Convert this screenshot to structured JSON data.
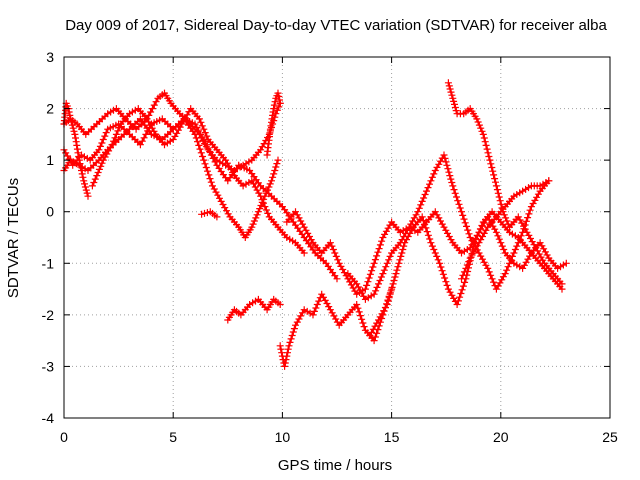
{
  "chart_data": {
    "type": "scatter",
    "title": "Day 009 of 2017, Sidereal Day-to-day VTEC variation (SDTVAR) for receiver alba",
    "xlabel": "GPS time / hours",
    "ylabel": "SDTVAR / TECUs",
    "xlim": [
      0,
      25
    ],
    "ylim": [
      -4,
      3
    ],
    "xticks": [
      0,
      5,
      10,
      15,
      20,
      25
    ],
    "yticks": [
      -4,
      -3,
      -2,
      -1,
      0,
      1,
      2,
      3
    ],
    "grid": true,
    "marker": "+",
    "color": "#ff0000",
    "series": [
      {
        "x": [
          0.0,
          0.1,
          0.2,
          0.3,
          0.5,
          0.7,
          0.9,
          1.1
        ],
        "y": [
          1.7,
          2.1,
          2.0,
          1.8,
          1.5,
          1.0,
          0.6,
          0.3
        ]
      },
      {
        "x": [
          0.0,
          0.3,
          0.6,
          1.0,
          1.5,
          2.0,
          2.4,
          2.8,
          3.3,
          3.8,
          4.3,
          4.6,
          4.9,
          5.3,
          5.8,
          6.2,
          6.6,
          7.0,
          7.4,
          7.8,
          8.2,
          8.6,
          9.0,
          9.4,
          9.7,
          9.9
        ],
        "y": [
          1.7,
          1.8,
          1.7,
          1.5,
          1.7,
          1.9,
          2.0,
          1.8,
          1.6,
          1.8,
          2.2,
          2.3,
          2.1,
          1.9,
          1.7,
          1.5,
          1.2,
          1.0,
          0.9,
          0.8,
          0.9,
          1.0,
          1.2,
          1.5,
          1.9,
          2.1
        ]
      },
      {
        "x": [
          0.0,
          0.3,
          0.7,
          1.1,
          1.6,
          2.0,
          2.5,
          3.0,
          3.5,
          4.0,
          4.5,
          5.0,
          5.5,
          6.0,
          6.4,
          6.8,
          7.2,
          7.6,
          8.0,
          8.3,
          8.6,
          8.9,
          9.2,
          9.5,
          9.8
        ],
        "y": [
          0.8,
          1.0,
          0.9,
          0.8,
          1.0,
          1.2,
          1.4,
          1.6,
          1.8,
          1.5,
          1.4,
          1.6,
          1.8,
          1.5,
          1.0,
          0.5,
          0.2,
          -0.1,
          -0.3,
          -0.5,
          -0.3,
          0.0,
          0.3,
          0.6,
          1.0
        ]
      },
      {
        "x": [
          0.0,
          0.4,
          0.8,
          1.2,
          1.6,
          2.0,
          2.5,
          3.0,
          3.5,
          4.0,
          4.5,
          5.0,
          5.5,
          6.0,
          6.5,
          7.0,
          7.5,
          8.0,
          8.5,
          9.0,
          9.5,
          10.0,
          10.5,
          11.0,
          11.5,
          12.0,
          12.5
        ],
        "y": [
          1.2,
          0.9,
          1.1,
          1.0,
          1.2,
          1.6,
          1.7,
          1.5,
          1.3,
          1.7,
          1.8,
          1.6,
          1.8,
          1.7,
          1.3,
          0.9,
          0.6,
          0.9,
          0.8,
          0.5,
          0.3,
          0.1,
          -0.2,
          -0.5,
          -0.8,
          -1.0,
          -1.3
        ]
      },
      {
        "x": [
          1.3,
          1.5,
          1.8,
          2.2,
          2.6,
          3.0,
          3.4,
          3.8,
          4.2,
          4.6,
          5.0,
          5.4,
          5.8,
          6.2,
          6.6,
          7.0,
          7.4,
          7.8,
          8.2,
          8.6,
          9.0,
          9.4,
          9.8,
          10.2,
          10.6,
          11.0
        ],
        "y": [
          0.5,
          0.7,
          1.0,
          1.3,
          1.7,
          1.9,
          2.0,
          1.8,
          1.5,
          1.3,
          1.4,
          1.7,
          2.0,
          1.8,
          1.4,
          1.2,
          1.0,
          0.7,
          0.5,
          0.6,
          0.3,
          -0.1,
          -0.3,
          -0.5,
          -0.6,
          -0.8
        ]
      },
      {
        "x": [
          6.3,
          6.7,
          7.0
        ],
        "y": [
          -0.05,
          -0.0,
          -0.1
        ]
      },
      {
        "x": [
          7.5,
          7.8,
          8.1,
          8.5,
          8.9,
          9.3,
          9.6,
          9.9
        ],
        "y": [
          -2.1,
          -1.9,
          -2.0,
          -1.8,
          -1.7,
          -1.9,
          -1.7,
          -1.8
        ]
      },
      {
        "x": [
          9.9,
          10.0,
          10.1,
          10.3,
          10.6,
          11.0,
          11.4,
          11.8,
          12.2,
          12.6,
          13.0,
          13.4,
          13.8,
          14.2,
          14.6,
          15.0
        ],
        "y": [
          -2.6,
          -2.8,
          -3.0,
          -2.6,
          -2.2,
          -1.9,
          -2.0,
          -1.6,
          -1.9,
          -2.2,
          -2.0,
          -1.8,
          -2.3,
          -2.5,
          -2.0,
          -1.5
        ]
      },
      {
        "x": [
          10.2,
          10.6,
          11.0,
          11.4,
          11.8,
          12.2,
          12.6,
          13.0,
          13.4,
          13.8,
          14.2,
          14.6,
          15.0,
          15.4,
          15.8,
          16.2,
          16.6,
          17.0,
          17.4,
          17.8,
          18.2,
          18.6,
          19.0,
          19.4,
          19.8,
          20.2,
          20.6,
          21.0,
          21.4,
          21.8,
          22.2
        ],
        "y": [
          -0.2,
          0.0,
          -0.3,
          -0.6,
          -0.8,
          -0.6,
          -1.0,
          -1.3,
          -1.6,
          -1.5,
          -1.0,
          -0.5,
          -0.2,
          -0.4,
          -0.3,
          0.0,
          0.4,
          0.8,
          1.1,
          0.5,
          0.0,
          -0.5,
          -0.8,
          -1.1,
          -1.5,
          -1.2,
          -0.8,
          -0.4,
          0.1,
          0.4,
          0.6
        ]
      },
      {
        "x": [
          13.0,
          13.4,
          13.8,
          14.2,
          14.6,
          15.0,
          15.4,
          15.8,
          16.2,
          16.6,
          17.0,
          17.4,
          17.8,
          18.2,
          18.6,
          19.0,
          19.4,
          19.8,
          20.2,
          20.6,
          21.0,
          21.4,
          21.8,
          22.2,
          22.6,
          23.0
        ],
        "y": [
          -1.2,
          -1.4,
          -1.7,
          -1.6,
          -1.2,
          -0.8,
          -0.6,
          -0.3,
          -0.4,
          -0.2,
          0.0,
          -0.3,
          -0.6,
          -0.8,
          -0.7,
          -0.4,
          -0.1,
          -0.4,
          -0.8,
          -1.0,
          -1.1,
          -0.8,
          -0.6,
          -0.9,
          -1.1,
          -1.0
        ]
      },
      {
        "x": [
          14.0,
          14.4,
          14.8,
          15.2,
          15.6,
          16.0,
          16.4,
          16.8,
          17.2,
          17.6,
          18.0,
          18.4,
          18.8,
          19.2,
          19.6,
          20.0,
          20.4,
          20.8,
          21.2,
          21.6,
          22.0,
          22.4,
          22.8
        ],
        "y": [
          -2.4,
          -2.1,
          -1.8,
          -1.2,
          -0.6,
          -0.3,
          -0.1,
          -0.6,
          -1.0,
          -1.5,
          -1.8,
          -1.3,
          -0.6,
          -0.2,
          0.0,
          -0.2,
          -0.4,
          -0.5,
          -0.7,
          -0.9,
          -1.1,
          -1.3,
          -1.5
        ]
      },
      {
        "x": [
          17.6,
          17.8,
          18.0,
          18.3,
          18.6,
          18.9,
          19.2,
          19.5,
          19.8,
          20.1,
          20.4,
          20.8,
          21.2,
          21.6,
          22.0,
          22.4,
          22.8
        ],
        "y": [
          2.5,
          2.2,
          1.9,
          1.9,
          2.0,
          1.8,
          1.5,
          1.0,
          0.5,
          0.0,
          -0.3,
          -0.1,
          -0.4,
          -0.7,
          -1.0,
          -1.2,
          -1.4
        ]
      },
      {
        "x": [
          18.2,
          18.6,
          19.0,
          19.4,
          19.8,
          20.2,
          20.6,
          21.0,
          21.4,
          21.8,
          22.2
        ],
        "y": [
          -1.3,
          -0.9,
          -0.6,
          -0.3,
          -0.1,
          0.1,
          0.3,
          0.4,
          0.5,
          0.5,
          0.6
        ]
      },
      {
        "x": [
          9.3,
          9.45,
          9.6,
          9.7,
          9.8,
          9.9
        ],
        "y": [
          1.1,
          1.6,
          2.0,
          2.2,
          2.3,
          2.1
        ]
      }
    ]
  }
}
